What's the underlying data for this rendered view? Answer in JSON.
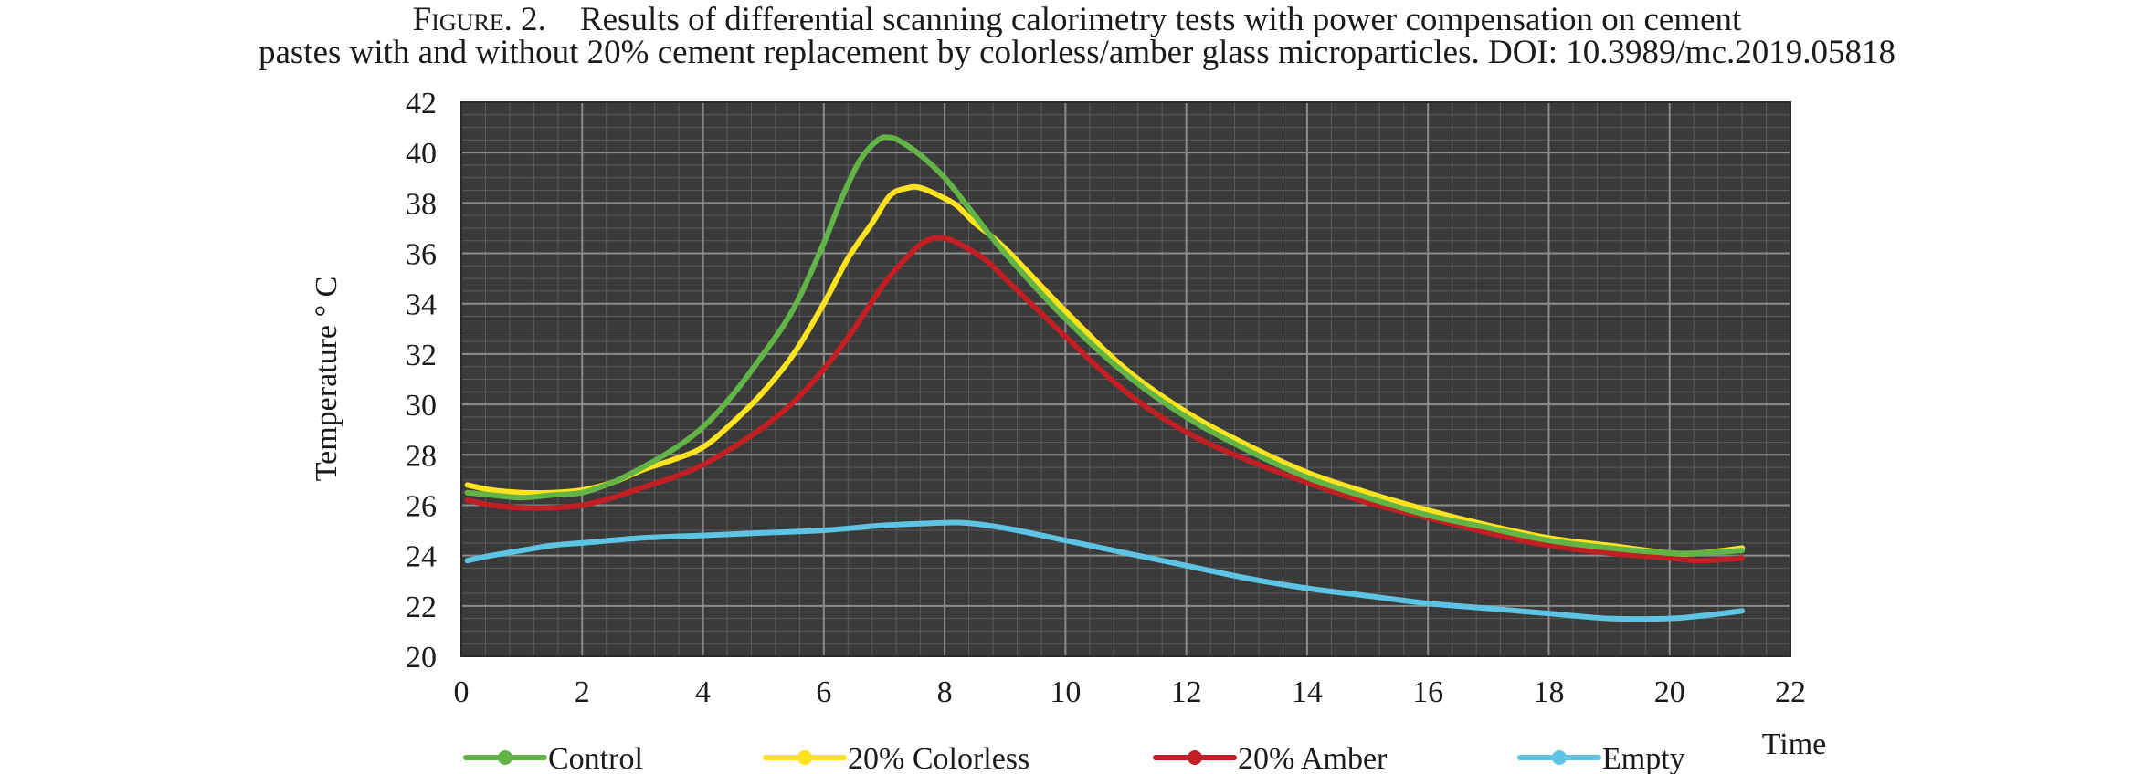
{
  "caption": {
    "label": "Figure. 2.",
    "line1": "Results of differential scanning calorimetry tests with power compensation on cement",
    "line2": "pastes with and without 20% cement replacement by colorless/amber glass microparticles. DOI: 10.3989/mc.2019.05818"
  },
  "chart_data": {
    "type": "line",
    "title": "",
    "xlabel": "Time",
    "ylabel": "Temperature ° C",
    "xlim": [
      0,
      22
    ],
    "ylim": [
      20,
      42
    ],
    "xticks": [
      0,
      2,
      4,
      6,
      8,
      10,
      12,
      14,
      16,
      18,
      20,
      22
    ],
    "yticks": [
      20,
      22,
      24,
      26,
      28,
      30,
      32,
      34,
      36,
      38,
      40,
      42
    ],
    "grid": true,
    "legend": "bottom",
    "series": [
      {
        "name": "Control",
        "color": "#62b446",
        "x": [
          0.1,
          0.5,
          1,
          1.5,
          2,
          2.5,
          3,
          3.5,
          4,
          4.5,
          5,
          5.5,
          6,
          6.3,
          6.6,
          6.9,
          7.1,
          7.3,
          7.6,
          8,
          8.5,
          9,
          10,
          11,
          12,
          13,
          14,
          15,
          16,
          17,
          18,
          19,
          20,
          20.5,
          21.2
        ],
        "y": [
          26.5,
          26.4,
          26.3,
          26.4,
          26.5,
          26.9,
          27.5,
          28.2,
          29.1,
          30.4,
          32.0,
          33.8,
          36.4,
          38.2,
          39.7,
          40.5,
          40.6,
          40.4,
          39.9,
          39.0,
          37.5,
          36.0,
          33.4,
          31.2,
          29.5,
          28.2,
          27.1,
          26.3,
          25.6,
          25.1,
          24.6,
          24.3,
          24.1,
          24.1,
          24.2
        ]
      },
      {
        "name": "20% Colorless",
        "color": "#fde21f",
        "x": [
          0.1,
          0.5,
          1,
          1.5,
          2,
          2.5,
          3,
          3.5,
          4,
          4.5,
          5,
          5.5,
          6,
          6.4,
          6.8,
          7.1,
          7.4,
          7.6,
          7.9,
          8.2,
          8.5,
          9,
          10,
          11,
          12,
          13,
          14,
          15,
          16,
          17,
          18,
          19,
          20,
          20.5,
          21.2
        ],
        "y": [
          26.8,
          26.6,
          26.5,
          26.5,
          26.6,
          26.9,
          27.4,
          27.8,
          28.3,
          29.3,
          30.5,
          32.0,
          34.0,
          35.8,
          37.2,
          38.3,
          38.6,
          38.6,
          38.3,
          37.9,
          37.2,
          36.2,
          33.7,
          31.4,
          29.7,
          28.4,
          27.3,
          26.5,
          25.8,
          25.2,
          24.7,
          24.4,
          24.1,
          24.1,
          24.3
        ]
      },
      {
        "name": "20% Amber",
        "color": "#c11f24",
        "x": [
          0.1,
          0.5,
          1,
          1.5,
          2,
          2.5,
          3,
          3.5,
          4,
          4.5,
          5,
          5.5,
          6,
          6.5,
          7,
          7.4,
          7.7,
          8,
          8.3,
          8.7,
          9,
          10,
          11,
          12,
          13,
          14,
          15,
          16,
          17,
          18,
          19,
          20,
          20.5,
          21.2
        ],
        "y": [
          26.2,
          26.0,
          25.9,
          25.9,
          26.0,
          26.3,
          26.7,
          27.1,
          27.6,
          28.3,
          29.1,
          30.1,
          31.4,
          33.0,
          34.8,
          35.9,
          36.5,
          36.6,
          36.3,
          35.7,
          35.0,
          32.7,
          30.5,
          28.9,
          27.8,
          26.9,
          26.1,
          25.5,
          24.9,
          24.4,
          24.1,
          23.9,
          23.8,
          23.9
        ]
      },
      {
        "name": "Empty",
        "color": "#5dc4e4",
        "x": [
          0.1,
          0.5,
          1,
          1.5,
          2,
          3,
          4,
          5,
          6,
          7,
          8,
          8.3,
          8.7,
          9.2,
          10,
          11,
          12,
          13,
          14,
          15,
          16,
          17,
          18,
          19,
          20,
          20.5,
          21.2
        ],
        "y": [
          23.8,
          24.0,
          24.2,
          24.4,
          24.5,
          24.7,
          24.8,
          24.9,
          25.0,
          25.2,
          25.3,
          25.3,
          25.2,
          25.0,
          24.6,
          24.1,
          23.6,
          23.1,
          22.7,
          22.4,
          22.1,
          21.9,
          21.7,
          21.5,
          21.5,
          21.6,
          21.8
        ]
      }
    ]
  }
}
